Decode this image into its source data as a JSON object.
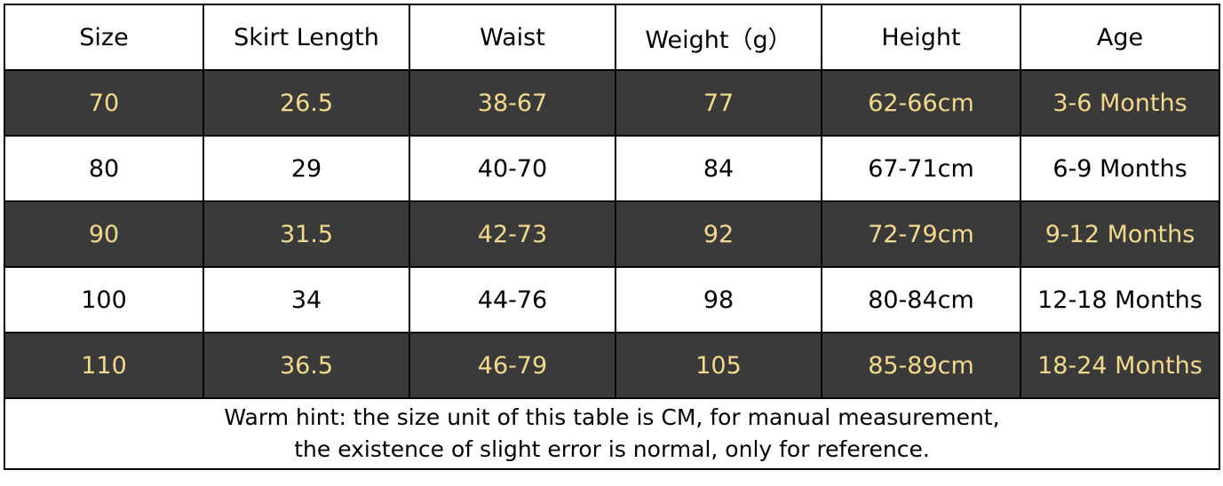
{
  "table": {
    "header": [
      "Size",
      "Skirt Length",
      "Waist",
      "Weight（g）",
      "Height",
      "Age"
    ],
    "rows": [
      [
        "70",
        "26.5",
        "38-67",
        "77",
        "62-66cm",
        "3-6 Months"
      ],
      [
        "80",
        "29",
        "40-70",
        "84",
        "67-71cm",
        "6-9 Months"
      ],
      [
        "90",
        "31.5",
        "42-73",
        "92",
        "72-79cm",
        "9-12 Months"
      ],
      [
        "100",
        "34",
        "44-76",
        "98",
        "80-84cm",
        "12-18 Months"
      ],
      [
        "110",
        "36.5",
        "46-79",
        "105",
        "85-89cm",
        "18-24 Months"
      ]
    ],
    "note": [
      "Warm hint: the size unit of this table is CM, for manual measurement,",
      "the existence of slight error is normal, only for reference."
    ]
  }
}
